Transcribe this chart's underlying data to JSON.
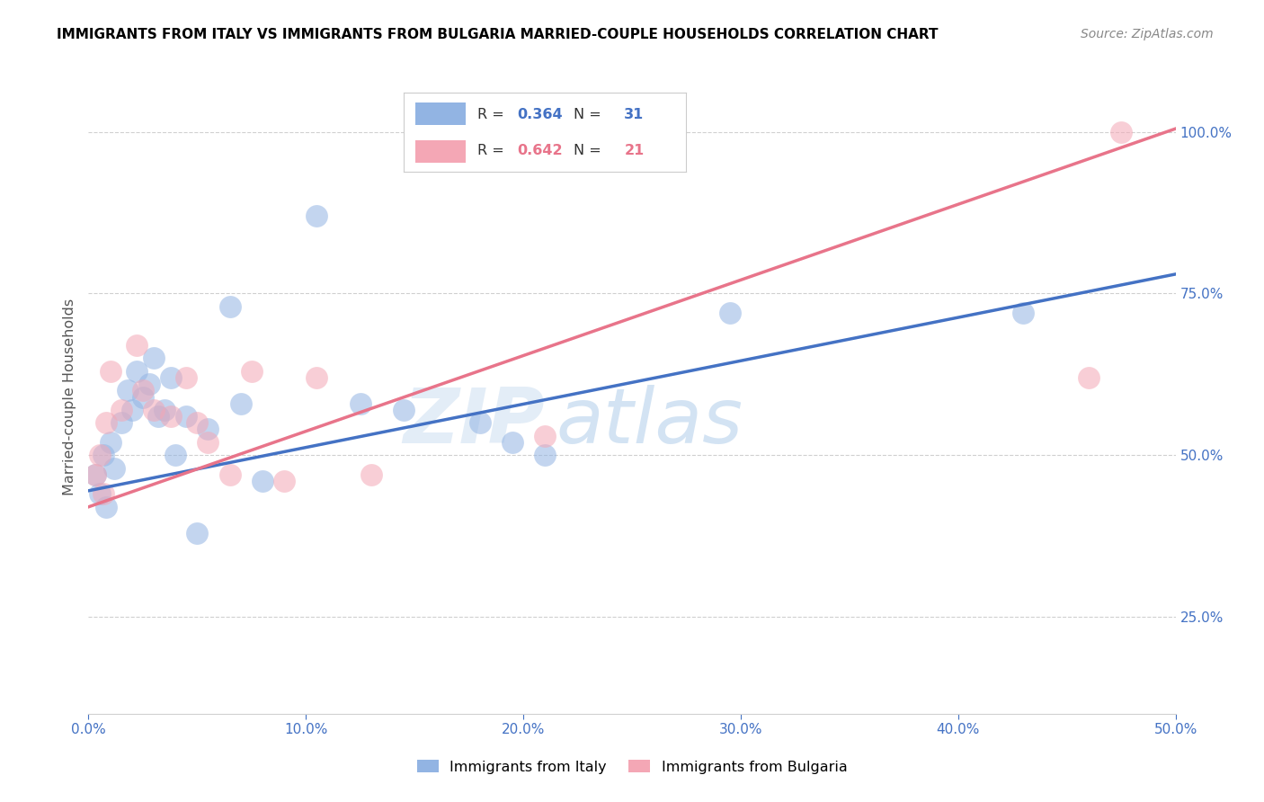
{
  "title": "IMMIGRANTS FROM ITALY VS IMMIGRANTS FROM BULGARIA MARRIED-COUPLE HOUSEHOLDS CORRELATION CHART",
  "source": "Source: ZipAtlas.com",
  "xlabel_ticks_labels": [
    "0.0%",
    "10.0%",
    "20.0%",
    "30.0%",
    "40.0%",
    "50.0%"
  ],
  "xlabel_vals": [
    0,
    10,
    20,
    30,
    40,
    50
  ],
  "ylabel": "Married-couple Households",
  "ylabel_ticks_labels": [
    "100.0%",
    "75.0%",
    "50.0%",
    "25.0%"
  ],
  "ylabel_vals": [
    100,
    75,
    50,
    25
  ],
  "xlim": [
    0,
    50
  ],
  "ylim": [
    10,
    108
  ],
  "italy_color": "#92b4e3",
  "bulgaria_color": "#f4a7b5",
  "italy_line_color": "#4472c4",
  "bulgaria_line_color": "#e8748a",
  "italy_R": 0.364,
  "italy_N": 31,
  "bulgaria_R": 0.642,
  "bulgaria_N": 21,
  "watermark_zip": "ZIP",
  "watermark_atlas": "atlas",
  "legend_italy_label": "Immigrants from Italy",
  "legend_bulgaria_label": "Immigrants from Bulgaria",
  "italy_scatter_x": [
    0.3,
    0.5,
    0.7,
    0.8,
    1.0,
    1.2,
    1.5,
    1.8,
    2.0,
    2.2,
    2.5,
    2.8,
    3.0,
    3.2,
    3.5,
    3.8,
    4.0,
    4.5,
    5.0,
    5.5,
    6.5,
    7.0,
    8.0,
    10.5,
    12.5,
    14.5,
    18.0,
    19.5,
    21.0,
    29.5,
    43.0
  ],
  "italy_scatter_y": [
    47,
    44,
    50,
    42,
    52,
    48,
    55,
    60,
    57,
    63,
    59,
    61,
    65,
    56,
    57,
    62,
    50,
    56,
    38,
    54,
    73,
    58,
    46,
    87,
    58,
    57,
    55,
    52,
    50,
    72,
    72
  ],
  "bulgaria_scatter_x": [
    0.3,
    0.5,
    0.7,
    0.8,
    1.0,
    1.5,
    2.2,
    2.5,
    3.0,
    3.8,
    4.5,
    5.0,
    5.5,
    6.5,
    7.5,
    9.0,
    10.5,
    13.0,
    21.0,
    46.0,
    47.5
  ],
  "bulgaria_scatter_y": [
    47,
    50,
    44,
    55,
    63,
    57,
    67,
    60,
    57,
    56,
    62,
    55,
    52,
    47,
    63,
    46,
    62,
    47,
    53,
    62,
    100
  ],
  "italy_trend": [
    44.5,
    78.0
  ],
  "bulgaria_trend": [
    42.0,
    100.5
  ],
  "grid_color": "#d0d0d0",
  "spine_color": "#d0d0d0"
}
